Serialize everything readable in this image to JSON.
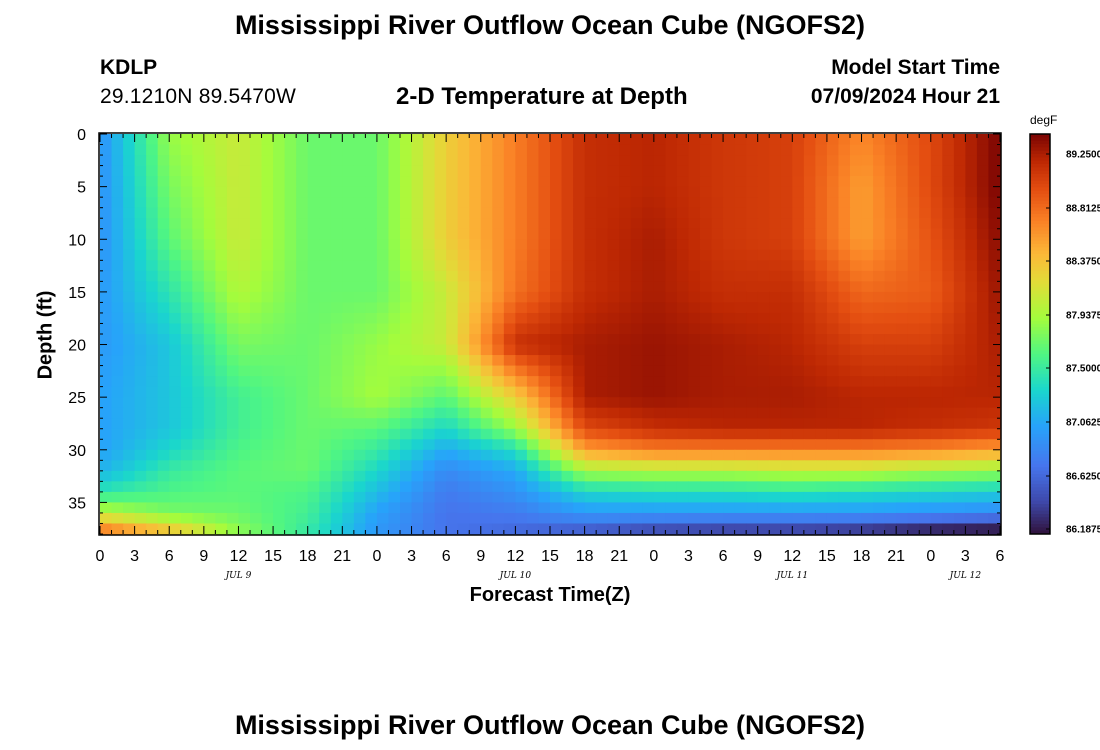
{
  "header": {
    "title": "Mississippi River Outflow Ocean Cube (NGOFS2)",
    "station_id": "KDLP",
    "coords": "29.1210N  89.5470W",
    "plot_title": "2-D Temperature at Depth",
    "model_label": "Model Start Time",
    "model_time": "07/09/2024 Hour 21"
  },
  "footer": {
    "title": "Mississippi River Outflow Ocean Cube (NGOFS2)"
  },
  "colorbar": {
    "unit": "degF",
    "labels": [
      "89.2500",
      "88.8125",
      "88.3750",
      "87.9375",
      "87.5000",
      "87.0625",
      "86.6250",
      "86.1875"
    ],
    "min": 86.1875,
    "max": 89.25
  },
  "chart_data": {
    "type": "heatmap",
    "xlabel": "Forecast Time(Z)",
    "ylabel": "Depth (ft)",
    "x_tick_labels": [
      "0",
      "3",
      "6",
      "9",
      "12",
      "15",
      "18",
      "21",
      "0",
      "3",
      "6",
      "9",
      "12",
      "15",
      "18",
      "21",
      "0",
      "3",
      "6",
      "9",
      "12",
      "15",
      "18",
      "21",
      "0",
      "3",
      "6"
    ],
    "x_date_labels": [
      "JUL 9",
      "JUL 10",
      "JUL 11",
      "JUL 12"
    ],
    "x_range_hours": [
      0,
      78
    ],
    "y_tick_labels": [
      "0",
      "5",
      "10",
      "15",
      "20",
      "25",
      "30",
      "35"
    ],
    "ylim": [
      38,
      0
    ],
    "color_range_degF": [
      86.1875,
      89.25
    ],
    "grid": "temperature (degF) vs. forecast time and depth; colormap turbo",
    "temperature_degF": {
      "time_hours": [
        0,
        6,
        12,
        18,
        24,
        30,
        36,
        42,
        48,
        54,
        60,
        66,
        72,
        78
      ],
      "depth_ft": [
        0,
        5,
        10,
        15,
        20,
        25,
        28,
        30,
        32,
        34,
        36,
        37.5
      ],
      "values": [
        [
          86.9,
          87.8,
          88.0,
          87.65,
          87.65,
          88.2,
          88.6,
          89.0,
          89.05,
          88.95,
          88.9,
          88.55,
          88.85,
          89.25
        ],
        [
          86.9,
          87.7,
          88.0,
          87.65,
          87.65,
          88.2,
          88.6,
          89.0,
          89.05,
          88.95,
          88.9,
          88.45,
          88.85,
          89.25
        ],
        [
          86.9,
          87.6,
          88.0,
          87.65,
          87.65,
          88.2,
          88.6,
          89.0,
          89.1,
          88.95,
          88.9,
          88.45,
          88.8,
          89.2
        ],
        [
          86.95,
          87.4,
          87.9,
          87.65,
          87.65,
          88.0,
          88.65,
          89.0,
          89.1,
          89.0,
          89.0,
          88.7,
          88.75,
          89.15
        ],
        [
          86.95,
          87.2,
          87.7,
          87.65,
          87.8,
          88.0,
          89.0,
          89.1,
          89.15,
          89.1,
          89.05,
          88.9,
          88.9,
          89.1
        ],
        [
          87.0,
          87.2,
          87.5,
          87.65,
          87.85,
          87.6,
          88.2,
          89.1,
          89.15,
          89.1,
          89.1,
          89.05,
          89.05,
          89.05
        ],
        [
          87.0,
          87.2,
          87.5,
          87.65,
          87.6,
          87.3,
          87.8,
          88.85,
          89.0,
          89.05,
          89.05,
          89.05,
          89.0,
          88.95
        ],
        [
          87.0,
          87.3,
          87.55,
          87.65,
          87.45,
          87.05,
          87.35,
          88.45,
          88.6,
          88.6,
          88.6,
          88.6,
          88.55,
          88.45
        ],
        [
          87.1,
          87.45,
          87.6,
          87.65,
          87.3,
          86.85,
          87.05,
          87.85,
          87.9,
          87.9,
          87.95,
          87.95,
          87.85,
          87.8
        ],
        [
          87.4,
          87.55,
          87.6,
          87.55,
          87.15,
          86.75,
          86.9,
          87.3,
          87.35,
          87.35,
          87.4,
          87.35,
          87.3,
          87.25
        ],
        [
          87.95,
          87.7,
          87.65,
          87.5,
          87.0,
          86.7,
          86.75,
          86.95,
          86.95,
          86.95,
          86.95,
          86.95,
          86.9,
          86.85
        ],
        [
          88.55,
          88.2,
          87.75,
          87.45,
          86.95,
          86.7,
          86.65,
          86.6,
          86.5,
          86.45,
          86.45,
          86.4,
          86.3,
          86.25
        ]
      ]
    }
  }
}
